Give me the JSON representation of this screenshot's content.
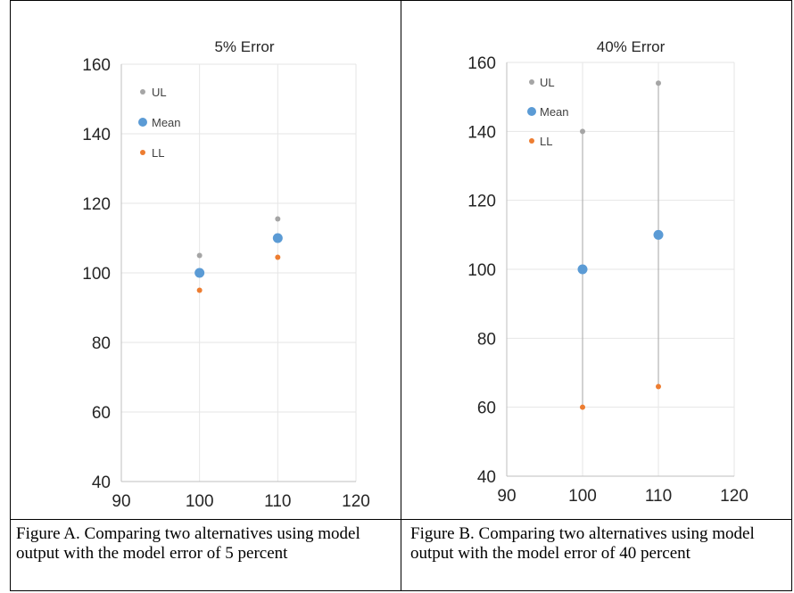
{
  "chart_data": [
    {
      "type": "scatter",
      "title": "5% Error",
      "xlim": [
        90,
        120
      ],
      "ylim": [
        40,
        160
      ],
      "x_ticks": [
        "90",
        "100",
        "110",
        "120"
      ],
      "y_ticks": [
        "160",
        "140",
        "120",
        "100",
        "80",
        "60",
        "40"
      ],
      "grid": true,
      "legend": "top-left",
      "error_lines": false,
      "series": [
        {
          "name": "UL",
          "color": "#a5a5a5",
          "x": [
            100,
            110
          ],
          "y": [
            105,
            115.5
          ]
        },
        {
          "name": "Mean",
          "color": "#5b9bd5",
          "x": [
            100,
            110
          ],
          "y": [
            100,
            110
          ]
        },
        {
          "name": "LL",
          "color": "#ed7d31",
          "x": [
            100,
            110
          ],
          "y": [
            95,
            104.5
          ]
        }
      ]
    },
    {
      "type": "scatter",
      "title": "40% Error",
      "xlim": [
        90,
        120
      ],
      "ylim": [
        40,
        160
      ],
      "x_ticks": [
        "90",
        "100",
        "110",
        "120"
      ],
      "y_ticks": [
        "160",
        "140",
        "120",
        "100",
        "80",
        "60",
        "40"
      ],
      "grid": true,
      "legend": "top-left",
      "error_lines": true,
      "series": [
        {
          "name": "UL",
          "color": "#a5a5a5",
          "x": [
            100,
            110
          ],
          "y": [
            140,
            154
          ]
        },
        {
          "name": "Mean",
          "color": "#5b9bd5",
          "x": [
            100,
            110
          ],
          "y": [
            100,
            110
          ]
        },
        {
          "name": "LL",
          "color": "#ed7d31",
          "x": [
            100,
            110
          ],
          "y": [
            60,
            66
          ]
        }
      ]
    }
  ],
  "captions": {
    "a": "Figure A. Comparing two alternatives using model output with the model error of 5 percent",
    "b": "Figure B. Comparing two alternatives using model output with the model error of 40 percent"
  }
}
